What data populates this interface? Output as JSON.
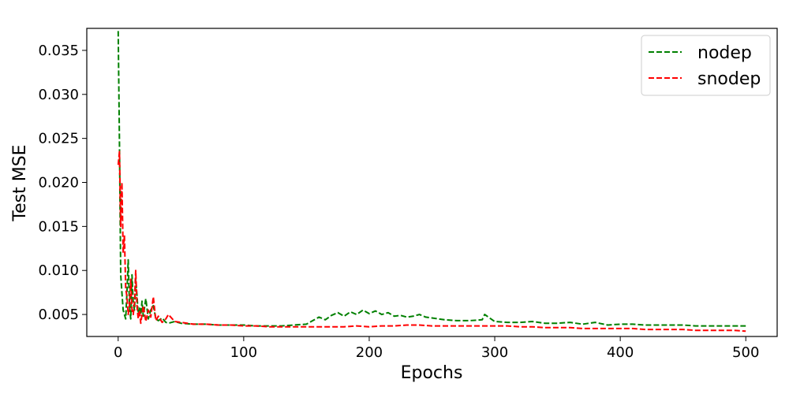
{
  "chart_data": {
    "type": "line",
    "xlabel": "Epochs",
    "ylabel": "Test MSE",
    "xlim": [
      -25,
      525
    ],
    "ylim": [
      0.0025,
      0.0375
    ],
    "xticks": [
      0,
      100,
      200,
      300,
      400,
      500
    ],
    "yticks": [
      0.005,
      0.01,
      0.015,
      0.02,
      0.025,
      0.03,
      0.035
    ],
    "xtick_labels": [
      "0",
      "100",
      "200",
      "300",
      "400",
      "500"
    ],
    "ytick_labels": [
      "0.005",
      "0.010",
      "0.015",
      "0.020",
      "0.025",
      "0.030",
      "0.035"
    ],
    "grid": false,
    "legend_position": "top-right",
    "series": [
      {
        "name": "nodep",
        "color": "#008000",
        "line_style": "dashed",
        "x": [
          0,
          1,
          2,
          3,
          4,
          5,
          6,
          7,
          8,
          9,
          10,
          11,
          12,
          13,
          14,
          15,
          16,
          17,
          18,
          19,
          20,
          22,
          24,
          26,
          28,
          30,
          32,
          35,
          38,
          40,
          45,
          50,
          60,
          70,
          80,
          90,
          100,
          110,
          120,
          130,
          140,
          150,
          155,
          160,
          165,
          170,
          175,
          180,
          185,
          190,
          195,
          200,
          205,
          210,
          215,
          220,
          225,
          230,
          235,
          240,
          245,
          250,
          255,
          260,
          270,
          280,
          290,
          292,
          300,
          310,
          320,
          330,
          340,
          350,
          360,
          370,
          380,
          390,
          400,
          410,
          420,
          430,
          440,
          450,
          460,
          470,
          480,
          490,
          500
        ],
        "y": [
          0.0372,
          0.0245,
          0.0095,
          0.0075,
          0.0055,
          0.005,
          0.0045,
          0.0075,
          0.0112,
          0.006,
          0.0045,
          0.0095,
          0.0062,
          0.0055,
          0.009,
          0.0072,
          0.005,
          0.0058,
          0.005,
          0.0065,
          0.0048,
          0.0068,
          0.0045,
          0.0055,
          0.006,
          0.0045,
          0.0043,
          0.0046,
          0.0041,
          0.004,
          0.0042,
          0.004,
          0.0039,
          0.0039,
          0.0038,
          0.0038,
          0.0038,
          0.0037,
          0.0037,
          0.0037,
          0.0038,
          0.0039,
          0.0043,
          0.0047,
          0.0044,
          0.0049,
          0.0052,
          0.0048,
          0.0053,
          0.005,
          0.0055,
          0.0051,
          0.0054,
          0.005,
          0.0052,
          0.0048,
          0.0049,
          0.0047,
          0.0048,
          0.005,
          0.0047,
          0.0046,
          0.0045,
          0.0044,
          0.0043,
          0.0043,
          0.0044,
          0.005,
          0.0042,
          0.0041,
          0.0041,
          0.0042,
          0.004,
          0.004,
          0.0041,
          0.0039,
          0.0041,
          0.0038,
          0.0039,
          0.0039,
          0.0038,
          0.0038,
          0.0038,
          0.0038,
          0.0037,
          0.0037,
          0.0037,
          0.0037,
          0.0037
        ]
      },
      {
        "name": "snodep",
        "color": "#ff0000",
        "line_style": "dashed",
        "x": [
          0,
          1,
          2,
          3,
          4,
          5,
          6,
          7,
          8,
          9,
          10,
          11,
          12,
          13,
          14,
          15,
          16,
          17,
          18,
          19,
          20,
          22,
          24,
          26,
          28,
          30,
          32,
          35,
          38,
          40,
          45,
          50,
          60,
          70,
          80,
          90,
          100,
          110,
          120,
          130,
          140,
          150,
          160,
          170,
          180,
          190,
          200,
          210,
          220,
          230,
          240,
          250,
          260,
          270,
          280,
          290,
          300,
          310,
          320,
          330,
          340,
          350,
          360,
          370,
          380,
          390,
          400,
          410,
          420,
          430,
          440,
          450,
          460,
          470,
          480,
          490,
          500
        ],
        "y": [
          0.022,
          0.0235,
          0.015,
          0.02,
          0.012,
          0.014,
          0.008,
          0.007,
          0.005,
          0.006,
          0.009,
          0.0055,
          0.005,
          0.0065,
          0.01,
          0.006,
          0.0045,
          0.0055,
          0.004,
          0.005,
          0.006,
          0.0042,
          0.0055,
          0.0047,
          0.007,
          0.0043,
          0.0048,
          0.0041,
          0.0045,
          0.005,
          0.0042,
          0.0041,
          0.0039,
          0.0039,
          0.0038,
          0.0038,
          0.0037,
          0.0037,
          0.0036,
          0.0036,
          0.0036,
          0.0036,
          0.0036,
          0.0036,
          0.0036,
          0.0037,
          0.0036,
          0.0037,
          0.0037,
          0.0038,
          0.0038,
          0.0037,
          0.0037,
          0.0037,
          0.0037,
          0.0037,
          0.0037,
          0.0037,
          0.0036,
          0.0036,
          0.0035,
          0.0035,
          0.0035,
          0.0034,
          0.0034,
          0.0034,
          0.0034,
          0.0034,
          0.0033,
          0.0033,
          0.0033,
          0.0033,
          0.0032,
          0.0032,
          0.0032,
          0.0032,
          0.0031
        ]
      }
    ]
  }
}
